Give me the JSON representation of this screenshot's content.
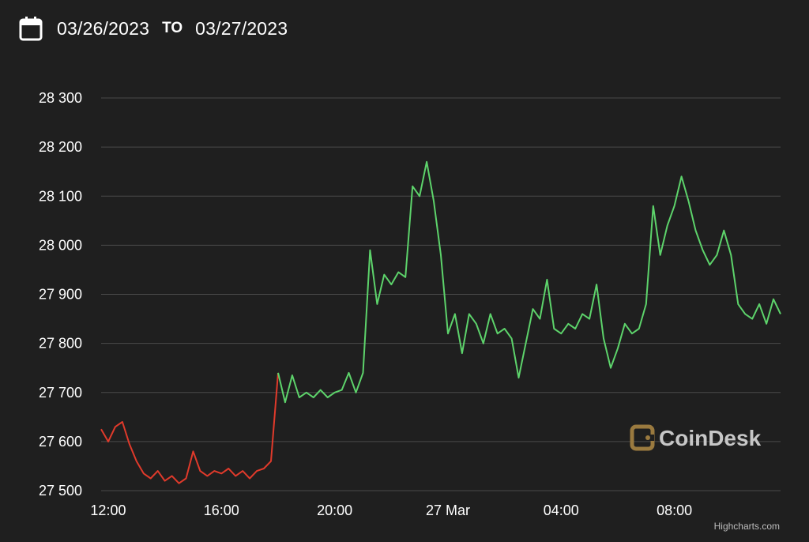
{
  "header": {
    "date_from": "03/26/2023",
    "to_label": "TO",
    "date_to": "03/27/2023",
    "calendar_icon": "calendar-icon"
  },
  "credit": "Highcharts.com",
  "watermark": {
    "text": "CoinDesk",
    "logo_icon": "coindesk-logo-icon",
    "color": "#9a7a3f"
  },
  "colors": {
    "background": "#1f1f1f",
    "grid": "#4a4a4a",
    "up": "#5dd36b",
    "down": "#e03a2b"
  },
  "chart_data": {
    "type": "line",
    "title": "",
    "xlabel": "",
    "ylabel": "",
    "x_range": [
      "2023-03-26 11:45",
      "2023-03-27 11:45"
    ],
    "ylim": [
      27500,
      28300
    ],
    "yticks": [
      27500,
      27600,
      27700,
      27800,
      27900,
      28000,
      28100,
      28200,
      28300
    ],
    "ytick_labels": [
      "27 500",
      "27 600",
      "27 700",
      "27 800",
      "27 900",
      "28 000",
      "28 100",
      "28 200",
      "28 300"
    ],
    "xticks": [
      {
        "x": "2023-03-26 12:00",
        "label": "12:00"
      },
      {
        "x": "2023-03-26 16:00",
        "label": "16:00"
      },
      {
        "x": "2023-03-26 20:00",
        "label": "20:00"
      },
      {
        "x": "2023-03-27 00:00",
        "label": "27 Mar"
      },
      {
        "x": "2023-03-27 04:00",
        "label": "04:00"
      },
      {
        "x": "2023-03-27 08:00",
        "label": "08:00"
      }
    ],
    "grid": true,
    "legend": "none",
    "series": [
      {
        "color_rule": "red below opening price (27620), green above",
        "points": [
          [
            "2023-03-26 11:45",
            27625
          ],
          [
            "2023-03-26 12:00",
            27600
          ],
          [
            "2023-03-26 12:15",
            27630
          ],
          [
            "2023-03-26 12:30",
            27640
          ],
          [
            "2023-03-26 12:45",
            27595
          ],
          [
            "2023-03-26 13:00",
            27560
          ],
          [
            "2023-03-26 13:15",
            27535
          ],
          [
            "2023-03-26 13:30",
            27525
          ],
          [
            "2023-03-26 13:45",
            27540
          ],
          [
            "2023-03-26 14:00",
            27520
          ],
          [
            "2023-03-26 14:15",
            27530
          ],
          [
            "2023-03-26 14:30",
            27515
          ],
          [
            "2023-03-26 14:45",
            27525
          ],
          [
            "2023-03-26 15:00",
            27580
          ],
          [
            "2023-03-26 15:15",
            27540
          ],
          [
            "2023-03-26 15:30",
            27530
          ],
          [
            "2023-03-26 15:45",
            27540
          ],
          [
            "2023-03-26 16:00",
            27535
          ],
          [
            "2023-03-26 16:15",
            27545
          ],
          [
            "2023-03-26 16:30",
            27530
          ],
          [
            "2023-03-26 16:45",
            27540
          ],
          [
            "2023-03-26 17:00",
            27525
          ],
          [
            "2023-03-26 17:15",
            27540
          ],
          [
            "2023-03-26 17:30",
            27545
          ],
          [
            "2023-03-26 17:45",
            27560
          ],
          [
            "2023-03-26 18:00",
            27740
          ],
          [
            "2023-03-26 18:15",
            27680
          ],
          [
            "2023-03-26 18:30",
            27735
          ],
          [
            "2023-03-26 18:45",
            27690
          ],
          [
            "2023-03-26 19:00",
            27700
          ],
          [
            "2023-03-26 19:15",
            27690
          ],
          [
            "2023-03-26 19:30",
            27705
          ],
          [
            "2023-03-26 19:45",
            27690
          ],
          [
            "2023-03-26 20:00",
            27700
          ],
          [
            "2023-03-26 20:15",
            27705
          ],
          [
            "2023-03-26 20:30",
            27740
          ],
          [
            "2023-03-26 20:45",
            27700
          ],
          [
            "2023-03-26 21:00",
            27740
          ],
          [
            "2023-03-26 21:15",
            27990
          ],
          [
            "2023-03-26 21:30",
            27880
          ],
          [
            "2023-03-26 21:45",
            27940
          ],
          [
            "2023-03-26 22:00",
            27920
          ],
          [
            "2023-03-26 22:15",
            27945
          ],
          [
            "2023-03-26 22:30",
            27935
          ],
          [
            "2023-03-26 22:45",
            28120
          ],
          [
            "2023-03-26 23:00",
            28100
          ],
          [
            "2023-03-26 23:15",
            28170
          ],
          [
            "2023-03-26 23:30",
            28090
          ],
          [
            "2023-03-26 23:45",
            27980
          ],
          [
            "2023-03-27 00:00",
            27820
          ],
          [
            "2023-03-27 00:15",
            27860
          ],
          [
            "2023-03-27 00:30",
            27780
          ],
          [
            "2023-03-27 00:45",
            27860
          ],
          [
            "2023-03-27 01:00",
            27840
          ],
          [
            "2023-03-27 01:15",
            27800
          ],
          [
            "2023-03-27 01:30",
            27860
          ],
          [
            "2023-03-27 01:45",
            27820
          ],
          [
            "2023-03-27 02:00",
            27830
          ],
          [
            "2023-03-27 02:15",
            27810
          ],
          [
            "2023-03-27 02:30",
            27730
          ],
          [
            "2023-03-27 02:45",
            27800
          ],
          [
            "2023-03-27 03:00",
            27870
          ],
          [
            "2023-03-27 03:15",
            27850
          ],
          [
            "2023-03-27 03:30",
            27930
          ],
          [
            "2023-03-27 03:45",
            27830
          ],
          [
            "2023-03-27 04:00",
            27820
          ],
          [
            "2023-03-27 04:15",
            27840
          ],
          [
            "2023-03-27 04:30",
            27830
          ],
          [
            "2023-03-27 04:45",
            27860
          ],
          [
            "2023-03-27 05:00",
            27850
          ],
          [
            "2023-03-27 05:15",
            27920
          ],
          [
            "2023-03-27 05:30",
            27810
          ],
          [
            "2023-03-27 05:45",
            27750
          ],
          [
            "2023-03-27 06:00",
            27790
          ],
          [
            "2023-03-27 06:15",
            27840
          ],
          [
            "2023-03-27 06:30",
            27820
          ],
          [
            "2023-03-27 06:45",
            27830
          ],
          [
            "2023-03-27 07:00",
            27880
          ],
          [
            "2023-03-27 07:15",
            28080
          ],
          [
            "2023-03-27 07:30",
            27980
          ],
          [
            "2023-03-27 07:45",
            28040
          ],
          [
            "2023-03-27 08:00",
            28080
          ],
          [
            "2023-03-27 08:15",
            28140
          ],
          [
            "2023-03-27 08:30",
            28090
          ],
          [
            "2023-03-27 08:45",
            28030
          ],
          [
            "2023-03-27 09:00",
            27990
          ],
          [
            "2023-03-27 09:15",
            27960
          ],
          [
            "2023-03-27 09:30",
            27980
          ],
          [
            "2023-03-27 09:45",
            28030
          ],
          [
            "2023-03-27 10:00",
            27980
          ],
          [
            "2023-03-27 10:15",
            27880
          ],
          [
            "2023-03-27 10:30",
            27860
          ],
          [
            "2023-03-27 10:45",
            27850
          ],
          [
            "2023-03-27 11:00",
            27880
          ],
          [
            "2023-03-27 11:15",
            27840
          ],
          [
            "2023-03-27 11:30",
            27890
          ],
          [
            "2023-03-27 11:45",
            27860
          ]
        ]
      }
    ]
  }
}
